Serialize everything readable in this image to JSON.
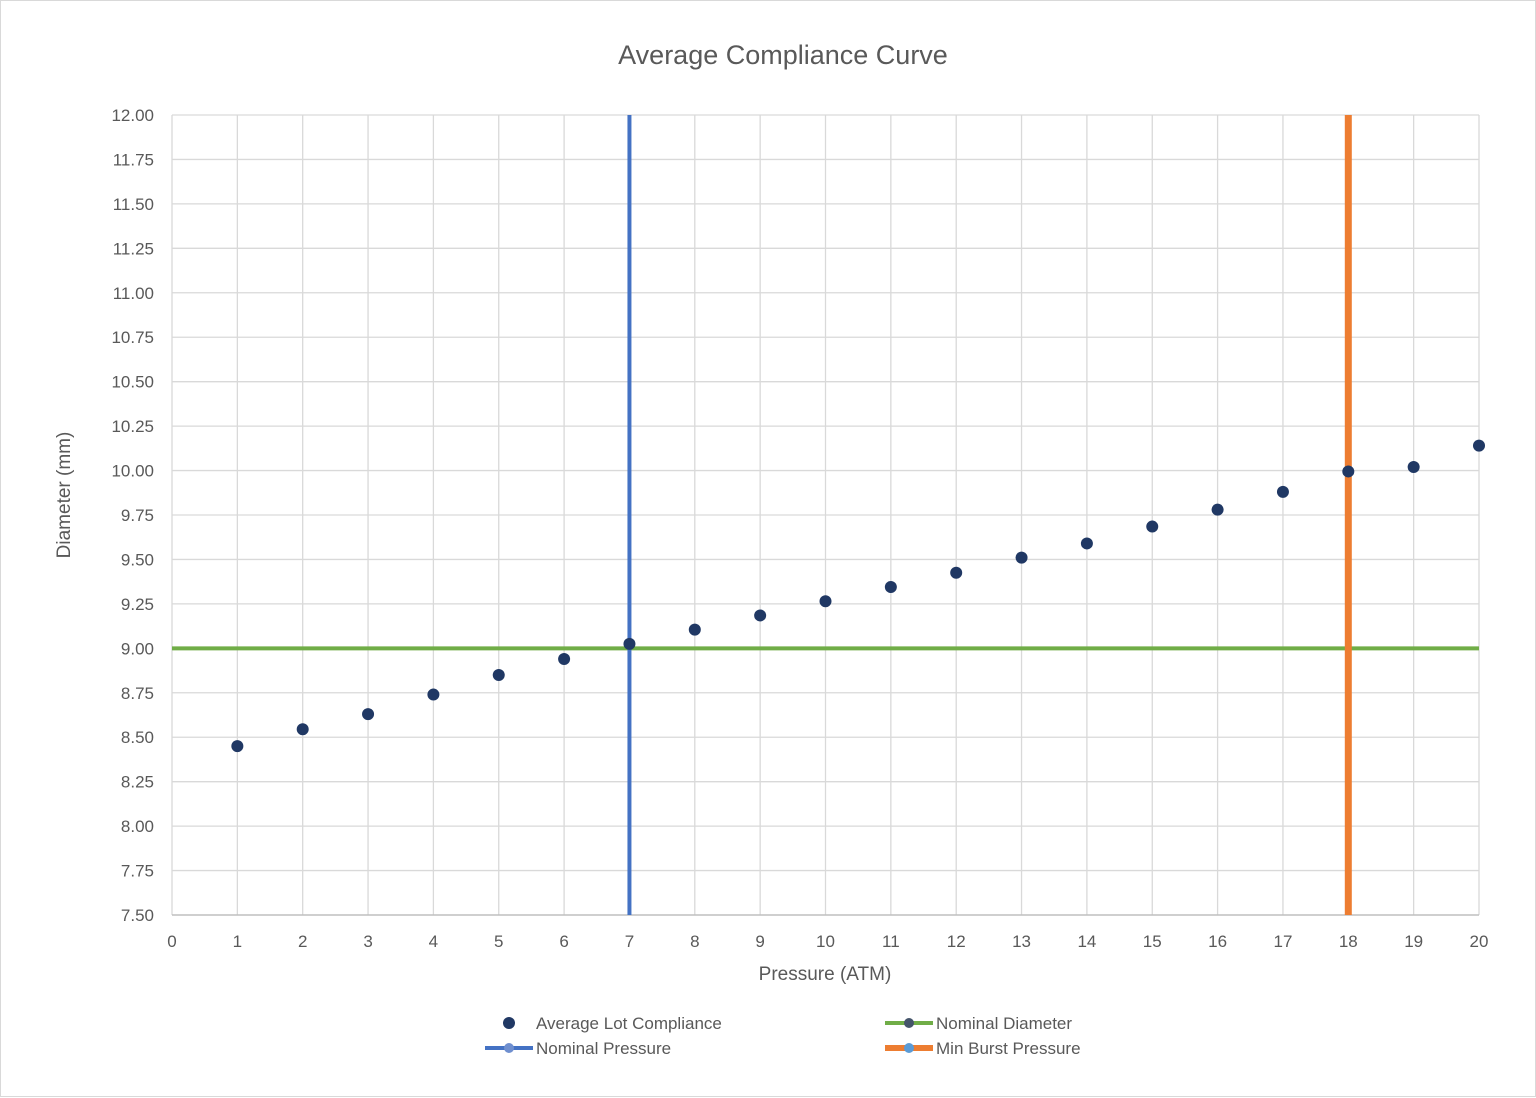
{
  "chart_data": {
    "type": "scatter",
    "title": "Average Compliance Curve",
    "xlabel": "Pressure (ATM)",
    "ylabel": "Diameter (mm)",
    "xlim": [
      0,
      20
    ],
    "ylim": [
      7.5,
      12.0
    ],
    "x_ticks": [
      "0",
      "1",
      "2",
      "3",
      "4",
      "5",
      "6",
      "7",
      "8",
      "9",
      "10",
      "11",
      "12",
      "13",
      "14",
      "15",
      "16",
      "17",
      "18",
      "19",
      "20"
    ],
    "y_ticks": [
      "7.50",
      "7.75",
      "8.00",
      "8.25",
      "8.50",
      "8.75",
      "9.00",
      "9.25",
      "9.50",
      "9.75",
      "10.00",
      "10.25",
      "10.50",
      "10.75",
      "11.00",
      "11.25",
      "11.50",
      "11.75",
      "12.00"
    ],
    "grid": true,
    "legend_position": "bottom",
    "series": [
      {
        "name": "Average Lot Compliance",
        "kind": "markers",
        "color": "#203864",
        "x": [
          1,
          2,
          3,
          4,
          5,
          6,
          7,
          8,
          9,
          10,
          11,
          12,
          13,
          14,
          15,
          16,
          17,
          18,
          19,
          20
        ],
        "y": [
          8.45,
          8.545,
          8.63,
          8.74,
          8.85,
          8.94,
          9.025,
          9.105,
          9.185,
          9.265,
          9.345,
          9.425,
          9.51,
          9.59,
          9.685,
          9.78,
          9.88,
          9.995,
          10.02,
          10.14
        ]
      },
      {
        "name": "Nominal Diameter",
        "kind": "line",
        "color": "#70ad47",
        "x": [
          0,
          20
        ],
        "y": [
          9.0,
          9.0
        ]
      },
      {
        "name": "Nominal Pressure",
        "kind": "line",
        "color": "#4472c4",
        "x": [
          7,
          7
        ],
        "y": [
          7.5,
          12.0
        ]
      },
      {
        "name": "Min Burst Pressure",
        "kind": "line",
        "color": "#ed7d31",
        "x": [
          18,
          18
        ],
        "y": [
          7.5,
          12.0
        ]
      }
    ]
  }
}
